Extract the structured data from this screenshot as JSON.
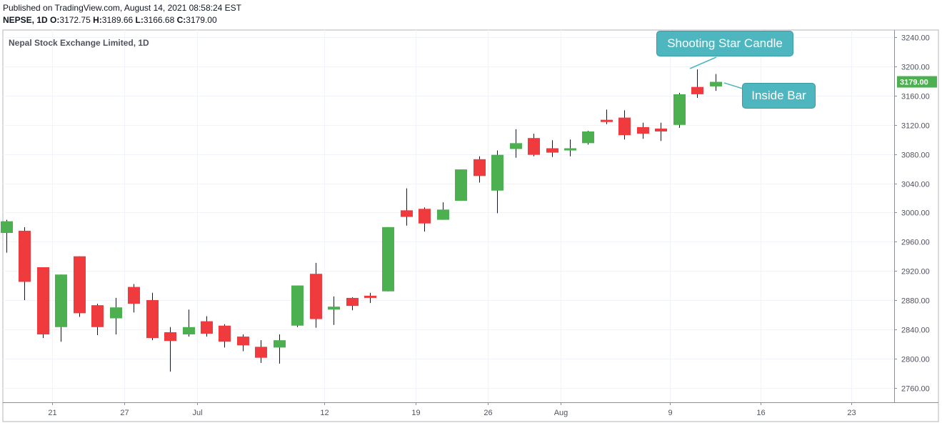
{
  "header": {
    "published": "Published on TradingView.com, August 14, 2021 08:58:24 EST",
    "symbol": "NEPSE, 1D",
    "o_label": "O:",
    "o": "3172.75",
    "h_label": "H:",
    "h": "3189.66",
    "l_label": "L:",
    "l": "3166.68",
    "c_label": "C:",
    "c": "3179.00"
  },
  "colors": {
    "up": "#4caf50",
    "down": "#ef3b3e",
    "annotation": "#4db6bf",
    "grid": "#f0f3fa"
  },
  "annotations": {
    "shooting_star": "Shooting Star Candle",
    "inside_bar": "Inside Bar"
  },
  "chart_data": {
    "type": "candlestick",
    "title": "Nepal Stock Exchange Limited, 1D",
    "ylim": [
      2740,
      3250
    ],
    "y_ticks": [
      3240,
      3200,
      3160,
      3120,
      3080,
      3040,
      3000,
      2960,
      2920,
      2880,
      2840,
      2800,
      2760
    ],
    "y_tick_labels": [
      "3240.00",
      "3200.00",
      "3160.00",
      "3120.00",
      "3080.00",
      "3040.00",
      "3000.00",
      "2960.00",
      "2920.00",
      "2880.00",
      "2840.00",
      "2800.00",
      "2760.00"
    ],
    "x_tick_labels": [
      "21",
      "27",
      "Jul",
      "12",
      "19",
      "26",
      "Aug",
      "9",
      "16",
      "23"
    ],
    "x_tick_after_bar": [
      2,
      6,
      10,
      17,
      22,
      26,
      30,
      36,
      41,
      46
    ],
    "last_price": "3179.00",
    "last_value": 3179.0,
    "bars": [
      {
        "o": 2972,
        "h": 2990,
        "l": 2945,
        "c": 2988
      },
      {
        "o": 2975,
        "h": 2980,
        "l": 2880,
        "c": 2905
      },
      {
        "o": 2925,
        "h": 2925,
        "l": 2828,
        "c": 2833
      },
      {
        "o": 2843,
        "h": 2915,
        "l": 2823,
        "c": 2915
      },
      {
        "o": 2940,
        "h": 2940,
        "l": 2857,
        "c": 2862
      },
      {
        "o": 2873,
        "h": 2875,
        "l": 2832,
        "c": 2843
      },
      {
        "o": 2855,
        "h": 2883,
        "l": 2833,
        "c": 2870
      },
      {
        "o": 2898,
        "h": 2902,
        "l": 2863,
        "c": 2875
      },
      {
        "o": 2880,
        "h": 2890,
        "l": 2825,
        "c": 2828
      },
      {
        "o": 2836,
        "h": 2843,
        "l": 2782,
        "c": 2824
      },
      {
        "o": 2833,
        "h": 2867,
        "l": 2830,
        "c": 2843
      },
      {
        "o": 2851,
        "h": 2858,
        "l": 2830,
        "c": 2834
      },
      {
        "o": 2845,
        "h": 2847,
        "l": 2815,
        "c": 2823
      },
      {
        "o": 2830,
        "h": 2833,
        "l": 2810,
        "c": 2818
      },
      {
        "o": 2816,
        "h": 2825,
        "l": 2794,
        "c": 2801
      },
      {
        "o": 2815,
        "h": 2833,
        "l": 2793,
        "c": 2825
      },
      {
        "o": 2845,
        "h": 2900,
        "l": 2843,
        "c": 2900
      },
      {
        "o": 2916,
        "h": 2931,
        "l": 2842,
        "c": 2854
      },
      {
        "o": 2867,
        "h": 2885,
        "l": 2846,
        "c": 2871
      },
      {
        "o": 2883,
        "h": 2884,
        "l": 2866,
        "c": 2872
      },
      {
        "o": 2886,
        "h": 2890,
        "l": 2876,
        "c": 2883
      },
      {
        "o": 2892,
        "h": 2980,
        "l": 2892,
        "c": 2980
      },
      {
        "o": 3003,
        "h": 3033,
        "l": 2982,
        "c": 2994
      },
      {
        "o": 3005,
        "h": 3007,
        "l": 2974,
        "c": 2985
      },
      {
        "o": 2990,
        "h": 3014,
        "l": 2990,
        "c": 3004
      },
      {
        "o": 3016,
        "h": 3059,
        "l": 3016,
        "c": 3059
      },
      {
        "o": 3073,
        "h": 3077,
        "l": 3041,
        "c": 3050
      },
      {
        "o": 3030,
        "h": 3085,
        "l": 2999,
        "c": 3079
      },
      {
        "o": 3087,
        "h": 3114,
        "l": 3075,
        "c": 3095
      },
      {
        "o": 3102,
        "h": 3108,
        "l": 3077,
        "c": 3079
      },
      {
        "o": 3088,
        "h": 3099,
        "l": 3076,
        "c": 3082
      },
      {
        "o": 3085,
        "h": 3100,
        "l": 3077,
        "c": 3088
      },
      {
        "o": 3095,
        "h": 3112,
        "l": 3093,
        "c": 3111
      },
      {
        "o": 3127,
        "h": 3141,
        "l": 3121,
        "c": 3124
      },
      {
        "o": 3130,
        "h": 3140,
        "l": 3100,
        "c": 3106
      },
      {
        "o": 3117,
        "h": 3123,
        "l": 3101,
        "c": 3108
      },
      {
        "o": 3115,
        "h": 3123,
        "l": 3098,
        "c": 3111
      },
      {
        "o": 3120,
        "h": 3164,
        "l": 3116,
        "c": 3162
      },
      {
        "o": 3172,
        "h": 3196,
        "l": 3157,
        "c": 3162
      },
      {
        "o": 3172.75,
        "h": 3189.66,
        "l": 3166.68,
        "c": 3179.0
      }
    ]
  }
}
